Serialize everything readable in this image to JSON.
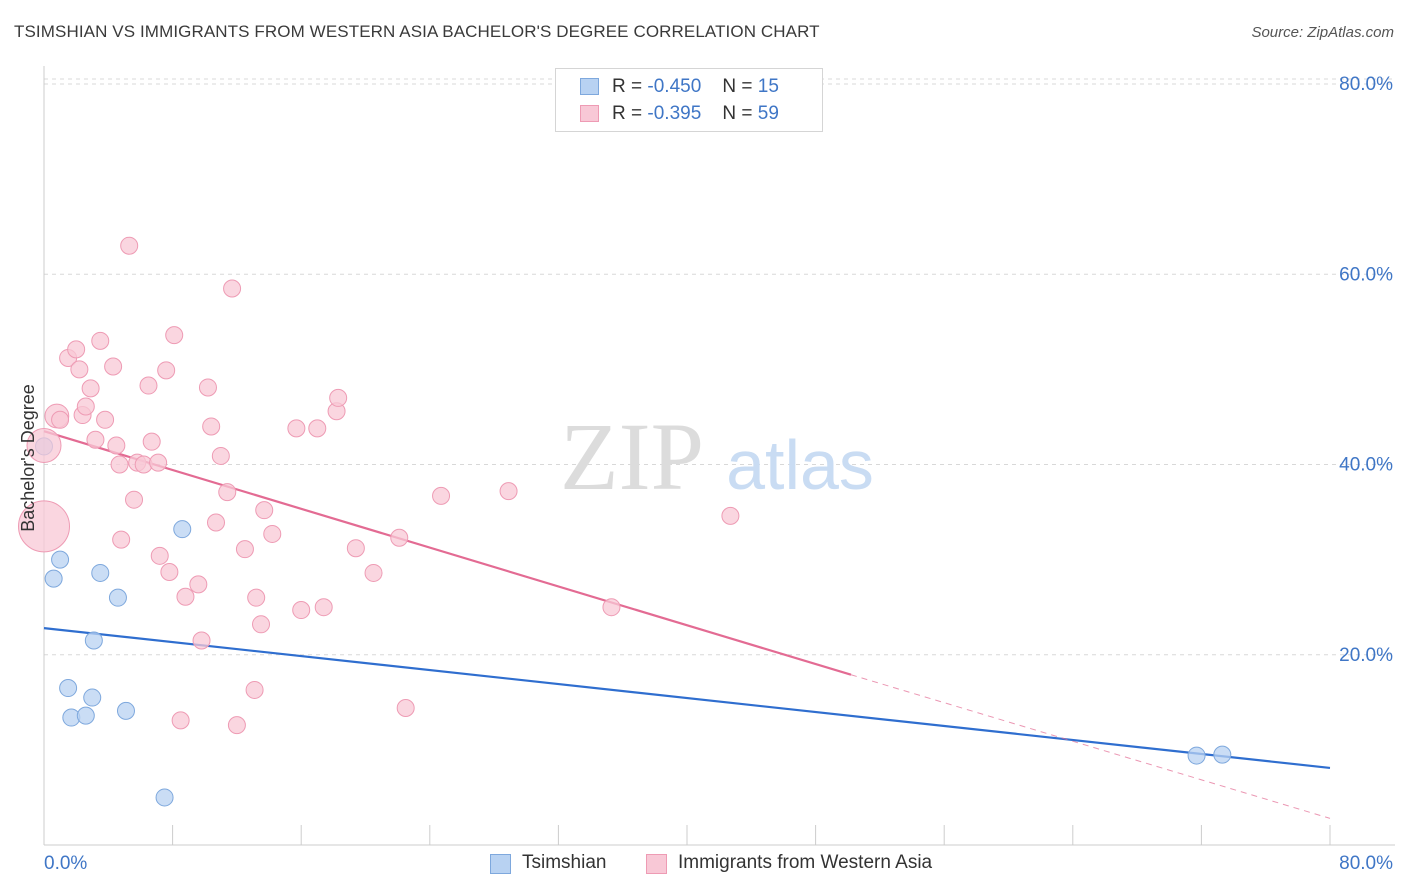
{
  "title": "TSIMSHIAN VS IMMIGRANTS FROM WESTERN ASIA BACHELOR'S DEGREE CORRELATION CHART",
  "source": "Source: ZipAtlas.com",
  "watermark": {
    "zip": "ZIP",
    "atlas": "atlas"
  },
  "legend": {
    "r_label": "R =",
    "n_label": "N =",
    "rows": [
      {
        "name": "Tsimshian",
        "r": "-0.450",
        "n": "15"
      },
      {
        "name": "Immigrants from Western Asia",
        "r": "-0.395",
        "n": "59"
      }
    ]
  },
  "colors": {
    "blue_fill": "#b8d2f2",
    "blue_stroke": "#7ea8dd",
    "blue_line": "#2f6ecf",
    "pink_fill": "#f8c8d6",
    "pink_stroke": "#ee9bb4",
    "pink_line": "#e36b93",
    "axis_text": "#3f76c6",
    "grid": "#d8d8d8"
  },
  "chart_data": {
    "type": "scatter",
    "title": "TSIMSHIAN VS IMMIGRANTS FROM WESTERN ASIA BACHELOR'S DEGREE CORRELATION CHART",
    "xlabel": "",
    "ylabel": "Bachelor's Degree",
    "xlim": [
      0,
      80
    ],
    "ylim": [
      0,
      80
    ],
    "x_tick_labels": [
      "0.0%",
      "80.0%"
    ],
    "y_ticks": [
      20,
      40,
      60,
      80
    ],
    "y_tick_labels": [
      "20.0%",
      "40.0%",
      "60.0%",
      "80.0%"
    ],
    "grid": true,
    "series": [
      {
        "name": "Tsimshian",
        "color": "blue",
        "points": [
          [
            0.0,
            41.9,
            1
          ],
          [
            0.6,
            28.0,
            1
          ],
          [
            1.0,
            30.0,
            1
          ],
          [
            1.5,
            16.5,
            1
          ],
          [
            1.7,
            13.4,
            1
          ],
          [
            2.6,
            13.6,
            1
          ],
          [
            3.0,
            15.5,
            1
          ],
          [
            3.1,
            21.5,
            1
          ],
          [
            3.5,
            28.6,
            1
          ],
          [
            4.6,
            26.0,
            1
          ],
          [
            5.1,
            14.1,
            1
          ],
          [
            7.5,
            5.0,
            1
          ],
          [
            8.6,
            33.2,
            1
          ],
          [
            71.7,
            9.4,
            1
          ],
          [
            73.3,
            9.5,
            1
          ]
        ],
        "trend": {
          "x": [
            0,
            80
          ],
          "y": [
            22.8,
            8.1
          ],
          "dashed_x": null
        }
      },
      {
        "name": "Immigrants from Western Asia",
        "color": "pink",
        "points": [
          [
            0.0,
            42.0,
            2
          ],
          [
            0.0,
            33.5,
            3
          ],
          [
            0.8,
            45.1,
            1.4
          ],
          [
            1.0,
            44.7,
            1
          ],
          [
            1.5,
            51.2,
            1
          ],
          [
            2.0,
            52.1,
            1
          ],
          [
            2.2,
            50.0,
            1
          ],
          [
            2.4,
            45.2,
            1
          ],
          [
            2.6,
            46.1,
            1
          ],
          [
            2.9,
            48.0,
            1
          ],
          [
            3.2,
            42.6,
            1
          ],
          [
            3.5,
            53.0,
            1
          ],
          [
            3.8,
            44.7,
            1
          ],
          [
            4.3,
            50.3,
            1
          ],
          [
            4.5,
            42.0,
            1
          ],
          [
            4.7,
            40.0,
            1
          ],
          [
            4.8,
            32.1,
            1
          ],
          [
            5.3,
            63.0,
            1
          ],
          [
            5.6,
            36.3,
            1
          ],
          [
            5.8,
            40.2,
            1
          ],
          [
            6.2,
            40.0,
            1
          ],
          [
            6.5,
            48.3,
            1
          ],
          [
            6.7,
            42.4,
            1
          ],
          [
            7.1,
            40.2,
            1
          ],
          [
            7.2,
            30.4,
            1
          ],
          [
            7.6,
            49.9,
            1
          ],
          [
            7.8,
            28.7,
            1
          ],
          [
            8.1,
            53.6,
            1
          ],
          [
            8.5,
            13.1,
            1
          ],
          [
            8.8,
            26.1,
            1
          ],
          [
            9.6,
            27.4,
            1
          ],
          [
            9.8,
            21.5,
            1
          ],
          [
            10.2,
            48.1,
            1
          ],
          [
            10.4,
            44.0,
            1
          ],
          [
            10.7,
            33.9,
            1
          ],
          [
            11.0,
            40.9,
            1
          ],
          [
            11.4,
            37.1,
            1
          ],
          [
            11.7,
            58.5,
            1
          ],
          [
            12.0,
            12.6,
            1
          ],
          [
            12.5,
            31.1,
            1
          ],
          [
            13.1,
            16.3,
            1
          ],
          [
            13.2,
            26.0,
            1
          ],
          [
            13.5,
            23.2,
            1
          ],
          [
            13.7,
            35.2,
            1
          ],
          [
            14.2,
            32.7,
            1
          ],
          [
            15.7,
            43.8,
            1
          ],
          [
            16.0,
            24.7,
            1
          ],
          [
            17.0,
            43.8,
            1
          ],
          [
            17.4,
            25.0,
            1
          ],
          [
            18.2,
            45.6,
            1
          ],
          [
            18.3,
            47.0,
            1
          ],
          [
            19.4,
            31.2,
            1
          ],
          [
            20.5,
            28.6,
            1
          ],
          [
            22.1,
            32.3,
            1
          ],
          [
            22.5,
            14.4,
            1
          ],
          [
            24.7,
            36.7,
            1
          ],
          [
            28.9,
            37.2,
            1
          ],
          [
            35.3,
            25.0,
            1
          ],
          [
            42.7,
            34.6,
            1
          ]
        ],
        "trend": {
          "x": [
            0,
            50.2
          ],
          "y": [
            43.5,
            17.9
          ],
          "dashed_x": [
            50.2,
            80
          ],
          "dashed_y": [
            17.9,
            2.8
          ]
        }
      }
    ]
  }
}
